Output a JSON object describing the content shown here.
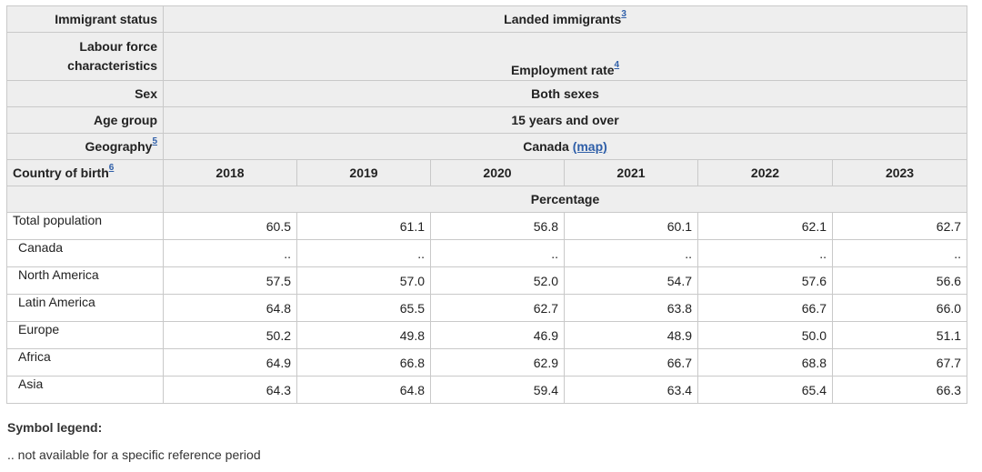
{
  "header": {
    "immigrant_status_label": "Immigrant status",
    "immigrant_status_value": "Landed immigrants",
    "immigrant_status_ref": "3",
    "labour_label": "Labour force characteristics",
    "labour_value": "Employment rate",
    "labour_ref": "4",
    "sex_label": "Sex",
    "sex_value": "Both sexes",
    "age_label": "Age group",
    "age_value": "15 years and over",
    "geo_label": "Geography",
    "geo_ref": "5",
    "geo_value": "Canada",
    "geo_link": "(map)",
    "country_label": "Country of birth",
    "country_ref": "6",
    "unit": "Percentage"
  },
  "years": [
    "2018",
    "2019",
    "2020",
    "2021",
    "2022",
    "2023"
  ],
  "rows": [
    {
      "label": "Total population",
      "values": [
        "60.5",
        "61.1",
        "56.8",
        "60.1",
        "62.1",
        "62.7"
      ]
    },
    {
      "label": "Canada",
      "values": [
        "..",
        "..",
        "..",
        "..",
        "..",
        ".."
      ]
    },
    {
      "label": "North America",
      "values": [
        "57.5",
        "57.0",
        "52.0",
        "54.7",
        "57.6",
        "56.6"
      ]
    },
    {
      "label": "Latin America",
      "values": [
        "64.8",
        "65.5",
        "62.7",
        "63.8",
        "66.7",
        "66.0"
      ]
    },
    {
      "label": "Europe",
      "values": [
        "50.2",
        "49.8",
        "46.9",
        "48.9",
        "50.0",
        "51.1"
      ]
    },
    {
      "label": "Africa",
      "values": [
        "64.9",
        "66.8",
        "62.9",
        "66.7",
        "68.8",
        "67.7"
      ]
    },
    {
      "label": "Asia",
      "values": [
        "64.3",
        "64.8",
        "59.4",
        "63.4",
        "65.4",
        "66.3"
      ]
    }
  ],
  "legend": {
    "title": "Symbol legend:",
    "symbol": "..",
    "text": "not available for a specific reference period"
  }
}
